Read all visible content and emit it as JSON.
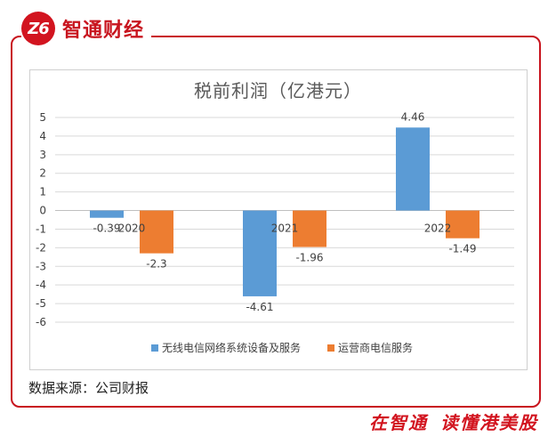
{
  "brand": {
    "logo_mark": "Z6",
    "name": "智通财经"
  },
  "source_note": "数据来源：公司财报",
  "slogan": {
    "part1": "在智通",
    "part2": "读懂港美股"
  },
  "colors": {
    "series1": "#5b9bd5",
    "series2": "#ed7d31",
    "frame": "#c8141e",
    "grid": "#d9d9d9"
  },
  "chart_data": {
    "type": "bar",
    "title": "税前利润（亿港元）",
    "categories": [
      "2020",
      "2021",
      "2022"
    ],
    "series": [
      {
        "name": "无线电信网络系统设备及服务",
        "values": [
          -0.39,
          -4.61,
          4.46
        ],
        "labels": [
          "-0.39",
          "-4.61",
          "4.46"
        ]
      },
      {
        "name": "运营商电信服务",
        "values": [
          -2.3,
          -1.96,
          -1.49
        ],
        "labels": [
          "-2.3",
          "-1.96",
          "-1.49"
        ]
      }
    ],
    "ylim": [
      -6,
      5
    ],
    "yticks": [
      5,
      4,
      3,
      2,
      1,
      0,
      -1,
      -2,
      -3,
      -4,
      -5,
      -6
    ],
    "grid": true,
    "legend_position": "bottom"
  }
}
